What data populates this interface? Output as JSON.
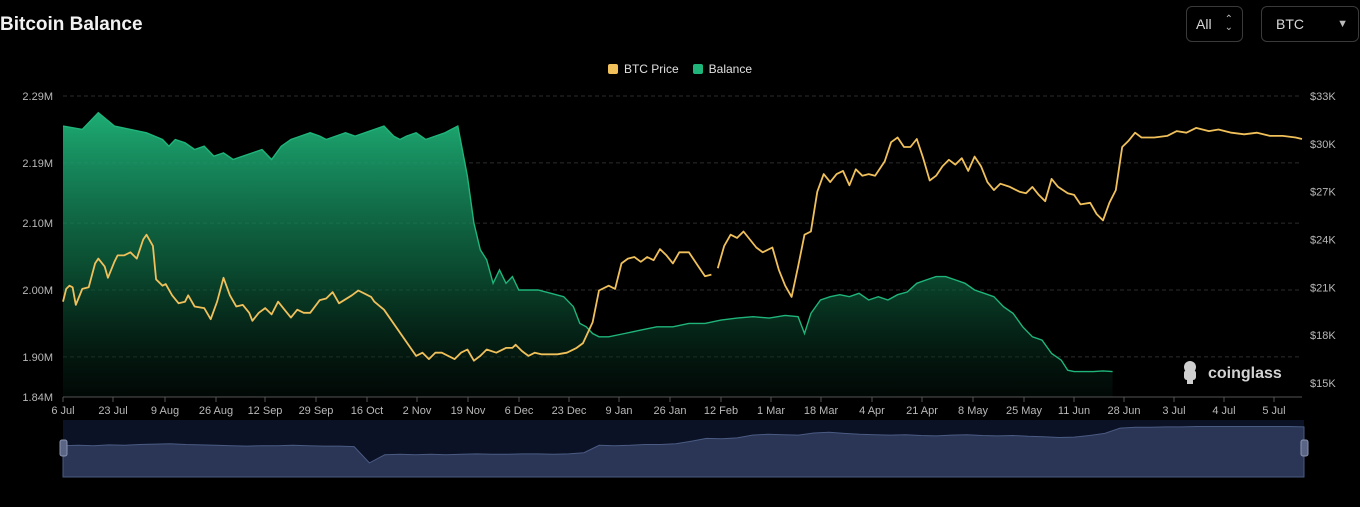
{
  "header": {
    "title": "Bitcoin Balance"
  },
  "controls": {
    "range_value": "All",
    "asset_value": "BTC"
  },
  "colors": {
    "price": "#f0c05a",
    "balance": "#1fb57a",
    "background": "#000000",
    "navigator": "#2b3656"
  },
  "watermark": {
    "text": "coinglass"
  },
  "chart_data": {
    "type": "line",
    "legend": {
      "placement": "top-center",
      "items": [
        "BTC Price",
        "Balance"
      ]
    },
    "x_ticks": [
      "6 Jul",
      "23 Jul",
      "9 Aug",
      "26 Aug",
      "12 Sep",
      "29 Sep",
      "16 Oct",
      "2 Nov",
      "19 Nov",
      "6 Dec",
      "23 Dec",
      "9 Jan",
      "26 Jan",
      "12 Feb",
      "1 Mar",
      "18 Mar",
      "4 Apr",
      "21 Apr",
      "8 May",
      "25 May",
      "11 Jun",
      "28 Jun",
      "3 Jul",
      "4 Jul",
      "5 Jul"
    ],
    "y_left": {
      "ticks": [
        "2.29M",
        "2.19M",
        "2.10M",
        "2.00M",
        "1.90M",
        "1.84M"
      ],
      "values": [
        2.29,
        2.19,
        2.1,
        2.0,
        1.9,
        1.84
      ],
      "range": [
        1.84,
        2.29
      ]
    },
    "y_right": {
      "ticks": [
        "$33K",
        "$30K",
        "$27K",
        "$24K",
        "$21K",
        "$18K",
        "$15K"
      ],
      "values": [
        33,
        30,
        27,
        24,
        21,
        18,
        15
      ],
      "range": [
        14.9,
        33
      ]
    },
    "grid": true,
    "series": [
      {
        "name": "Balance",
        "axis": "left",
        "style": "area",
        "values": [
          [
            0,
            2.245
          ],
          [
            6,
            2.24
          ],
          [
            11,
            2.265
          ],
          [
            16,
            2.245
          ],
          [
            21,
            2.24
          ],
          [
            26,
            2.235
          ],
          [
            31,
            2.225
          ],
          [
            33,
            2.215
          ],
          [
            35,
            2.225
          ],
          [
            38,
            2.22
          ],
          [
            41,
            2.21
          ],
          [
            44,
            2.215
          ],
          [
            47,
            2.2
          ],
          [
            50,
            2.205
          ],
          [
            53,
            2.195
          ],
          [
            56,
            2.2
          ],
          [
            59,
            2.205
          ],
          [
            62,
            2.21
          ],
          [
            65,
            2.195
          ],
          [
            68,
            2.215
          ],
          [
            71,
            2.225
          ],
          [
            74,
            2.23
          ],
          [
            77,
            2.235
          ],
          [
            80,
            2.23
          ],
          [
            82,
            2.225
          ],
          [
            85,
            2.23
          ],
          [
            88,
            2.235
          ],
          [
            91,
            2.23
          ],
          [
            94,
            2.235
          ],
          [
            97,
            2.24
          ],
          [
            100,
            2.245
          ],
          [
            103,
            2.23
          ],
          [
            105,
            2.225
          ],
          [
            107,
            2.23
          ],
          [
            110,
            2.235
          ],
          [
            113,
            2.225
          ],
          [
            116,
            2.23
          ],
          [
            119,
            2.235
          ],
          [
            121,
            2.24
          ],
          [
            123,
            2.245
          ],
          [
            124,
            2.22
          ],
          [
            126,
            2.17
          ],
          [
            128,
            2.1
          ],
          [
            130,
            2.06
          ],
          [
            132,
            2.045
          ],
          [
            134,
            2.01
          ],
          [
            136,
            2.03
          ],
          [
            138,
            2.01
          ],
          [
            140,
            2.02
          ],
          [
            142,
            2.0
          ],
          [
            144,
            2.0
          ],
          [
            148,
            2.0
          ],
          [
            152,
            1.995
          ],
          [
            156,
            1.99
          ],
          [
            159,
            1.975
          ],
          [
            161,
            1.95
          ],
          [
            163,
            1.945
          ],
          [
            165,
            1.935
          ],
          [
            167,
            1.93
          ],
          [
            170,
            1.93
          ],
          [
            175,
            1.935
          ],
          [
            180,
            1.94
          ],
          [
            185,
            1.945
          ],
          [
            190,
            1.945
          ],
          [
            195,
            1.95
          ],
          [
            200,
            1.95
          ],
          [
            205,
            1.955
          ],
          [
            210,
            1.958
          ],
          [
            215,
            1.96
          ],
          [
            220,
            1.958
          ],
          [
            225,
            1.962
          ],
          [
            229,
            1.96
          ],
          [
            231,
            1.935
          ],
          [
            233,
            1.965
          ],
          [
            236,
            1.985
          ],
          [
            239,
            1.99
          ],
          [
            242,
            1.993
          ],
          [
            245,
            1.99
          ],
          [
            248,
            1.995
          ],
          [
            251,
            1.985
          ],
          [
            254,
            1.99
          ],
          [
            257,
            1.985
          ],
          [
            260,
            1.993
          ],
          [
            263,
            1.997
          ],
          [
            266,
            2.01
          ],
          [
            269,
            2.015
          ],
          [
            272,
            2.02
          ],
          [
            275,
            2.02
          ],
          [
            278,
            2.015
          ],
          [
            281,
            2.01
          ],
          [
            284,
            2.0
          ],
          [
            287,
            1.995
          ],
          [
            290,
            1.99
          ],
          [
            293,
            1.975
          ],
          [
            296,
            1.965
          ],
          [
            299,
            1.945
          ],
          [
            302,
            1.93
          ],
          [
            305,
            1.925
          ],
          [
            308,
            1.905
          ],
          [
            311,
            1.895
          ],
          [
            313,
            1.88
          ],
          [
            315,
            1.878
          ],
          [
            318,
            1.878
          ],
          [
            321,
            1.878
          ],
          [
            324,
            1.879
          ],
          [
            327,
            1.878
          ]
        ]
      },
      {
        "name": "BTC Price",
        "axis": "right",
        "style": "line",
        "values": [
          [
            0,
            20.1
          ],
          [
            1,
            20.9
          ],
          [
            2,
            21.1
          ],
          [
            3,
            21.0
          ],
          [
            4,
            19.9
          ],
          [
            6,
            20.9
          ],
          [
            8,
            21.0
          ],
          [
            10,
            22.5
          ],
          [
            11,
            22.8
          ],
          [
            13,
            22.3
          ],
          [
            14,
            21.6
          ],
          [
            16,
            22.6
          ],
          [
            17,
            23.0
          ],
          [
            19,
            23.0
          ],
          [
            21,
            23.2
          ],
          [
            23,
            22.8
          ],
          [
            25,
            24.0
          ],
          [
            26,
            24.3
          ],
          [
            28,
            23.6
          ],
          [
            29,
            21.5
          ],
          [
            31,
            21.1
          ],
          [
            32,
            21.2
          ],
          [
            34,
            20.5
          ],
          [
            36,
            20.0
          ],
          [
            38,
            20.1
          ],
          [
            39,
            20.5
          ],
          [
            41,
            19.8
          ],
          [
            44,
            19.7
          ],
          [
            46,
            19.0
          ],
          [
            48,
            20.1
          ],
          [
            50,
            21.6
          ],
          [
            52,
            20.5
          ],
          [
            54,
            19.8
          ],
          [
            56,
            19.9
          ],
          [
            58,
            19.4
          ],
          [
            59,
            18.9
          ],
          [
            61,
            19.4
          ],
          [
            63,
            19.7
          ],
          [
            65,
            19.3
          ],
          [
            67,
            20.1
          ],
          [
            69,
            19.6
          ],
          [
            71,
            19.1
          ],
          [
            73,
            19.6
          ],
          [
            75,
            19.4
          ],
          [
            77,
            19.4
          ],
          [
            80,
            20.2
          ],
          [
            82,
            20.3
          ],
          [
            84,
            20.7
          ],
          [
            86,
            20.0
          ],
          [
            90,
            20.5
          ],
          [
            92,
            20.8
          ],
          [
            94,
            20.6
          ],
          [
            96,
            20.4
          ],
          [
            97,
            20.1
          ],
          [
            100,
            19.6
          ],
          [
            110,
            16.7
          ],
          [
            112,
            16.9
          ],
          [
            114,
            16.5
          ],
          [
            116,
            16.9
          ],
          [
            118,
            16.9
          ],
          [
            120,
            16.7
          ],
          [
            122,
            16.5
          ],
          [
            124,
            16.9
          ],
          [
            126,
            17.1
          ],
          [
            128,
            16.4
          ],
          [
            130,
            16.7
          ],
          [
            132,
            17.1
          ],
          [
            135,
            16.9
          ],
          [
            138,
            17.2
          ],
          [
            140,
            17.2
          ],
          [
            141,
            17.4
          ],
          [
            143,
            17.0
          ],
          [
            145,
            16.7
          ],
          [
            147,
            16.9
          ],
          [
            149,
            16.8
          ],
          [
            151,
            16.8
          ],
          [
            154,
            16.8
          ],
          [
            157,
            16.9
          ],
          [
            160,
            17.2
          ],
          [
            162,
            17.5
          ],
          [
            165,
            18.8
          ],
          [
            167,
            20.8
          ],
          [
            170,
            21.1
          ],
          [
            172,
            20.9
          ],
          [
            174,
            22.5
          ],
          [
            176,
            22.8
          ],
          [
            178,
            22.9
          ],
          [
            180,
            22.6
          ],
          [
            182,
            22.9
          ],
          [
            184,
            22.7
          ],
          [
            186,
            23.4
          ],
          [
            188,
            23.0
          ],
          [
            190,
            22.5
          ],
          [
            192,
            23.2
          ],
          [
            195,
            23.2
          ],
          [
            198,
            22.3
          ],
          [
            200,
            21.7
          ],
          [
            202,
            21.8
          ],
          [
            204,
            22.2
          ],
          [
            206,
            23.6
          ],
          [
            208,
            24.3
          ],
          [
            210,
            24.1
          ],
          [
            212,
            24.5
          ],
          [
            214,
            24.0
          ],
          [
            216,
            23.5
          ],
          [
            218,
            23.2
          ],
          [
            221,
            23.5
          ],
          [
            223,
            22.1
          ],
          [
            225,
            21.1
          ],
          [
            227,
            20.4
          ],
          [
            229,
            22.3
          ],
          [
            231,
            24.3
          ],
          [
            233,
            24.5
          ],
          [
            235,
            27.0
          ],
          [
            237,
            28.1
          ],
          [
            239,
            27.6
          ],
          [
            241,
            28.1
          ],
          [
            243,
            28.3
          ],
          [
            245,
            27.4
          ],
          [
            247,
            28.4
          ],
          [
            249,
            28.0
          ],
          [
            251,
            28.1
          ],
          [
            253,
            28.0
          ],
          [
            256,
            28.9
          ],
          [
            258,
            30.1
          ],
          [
            260,
            30.4
          ],
          [
            262,
            29.8
          ],
          [
            264,
            29.8
          ],
          [
            266,
            30.3
          ],
          [
            268,
            29.1
          ],
          [
            270,
            27.7
          ],
          [
            272,
            28.0
          ],
          [
            274,
            28.6
          ],
          [
            276,
            29.0
          ],
          [
            278,
            28.7
          ],
          [
            280,
            29.1
          ],
          [
            282,
            28.3
          ],
          [
            284,
            29.2
          ],
          [
            286,
            28.6
          ],
          [
            288,
            27.6
          ],
          [
            290,
            27.1
          ],
          [
            292,
            27.5
          ],
          [
            295,
            27.3
          ],
          [
            298,
            27.0
          ],
          [
            300,
            26.9
          ],
          [
            302,
            27.3
          ],
          [
            304,
            26.8
          ],
          [
            306,
            26.4
          ],
          [
            308,
            27.8
          ],
          [
            310,
            27.3
          ],
          [
            313,
            26.9
          ],
          [
            315,
            26.8
          ],
          [
            317,
            26.2
          ],
          [
            320,
            26.3
          ],
          [
            322,
            25.6
          ],
          [
            324,
            25.2
          ],
          [
            326,
            26.3
          ],
          [
            328,
            27.1
          ],
          [
            330,
            29.8
          ],
          [
            332,
            30.2
          ],
          [
            334,
            30.7
          ],
          [
            336,
            30.4
          ],
          [
            340,
            30.4
          ],
          [
            344,
            30.5
          ],
          [
            347,
            30.8
          ],
          [
            350,
            30.7
          ],
          [
            353,
            31.0
          ],
          [
            357,
            30.8
          ],
          [
            360,
            30.9
          ],
          [
            364,
            30.7
          ],
          [
            368,
            30.6
          ],
          [
            372,
            30.7
          ],
          [
            376,
            30.5
          ],
          [
            380,
            30.5
          ],
          [
            384,
            30.4
          ],
          [
            386,
            30.3
          ]
        ]
      }
    ],
    "gap_after_index": 97
  },
  "navigator": {
    "values": [
      0.47,
      0.48,
      0.47,
      0.49,
      0.48,
      0.5,
      0.51,
      0.52,
      0.5,
      0.49,
      0.48,
      0.47,
      0.46,
      0.47,
      0.47,
      0.48,
      0.47,
      0.46,
      0.46,
      0.45,
      0.05,
      0.25,
      0.26,
      0.25,
      0.26,
      0.25,
      0.26,
      0.27,
      0.26,
      0.26,
      0.27,
      0.27,
      0.26,
      0.27,
      0.3,
      0.48,
      0.47,
      0.48,
      0.5,
      0.5,
      0.52,
      0.58,
      0.65,
      0.64,
      0.66,
      0.73,
      0.75,
      0.74,
      0.73,
      0.78,
      0.8,
      0.77,
      0.75,
      0.74,
      0.73,
      0.74,
      0.72,
      0.71,
      0.73,
      0.74,
      0.72,
      0.71,
      0.72,
      0.7,
      0.69,
      0.67,
      0.68,
      0.72,
      0.77,
      0.9,
      0.92,
      0.92,
      0.93,
      0.93,
      0.94,
      0.94,
      0.94,
      0.94,
      0.94,
      0.94,
      0.94,
      0.93
    ]
  }
}
